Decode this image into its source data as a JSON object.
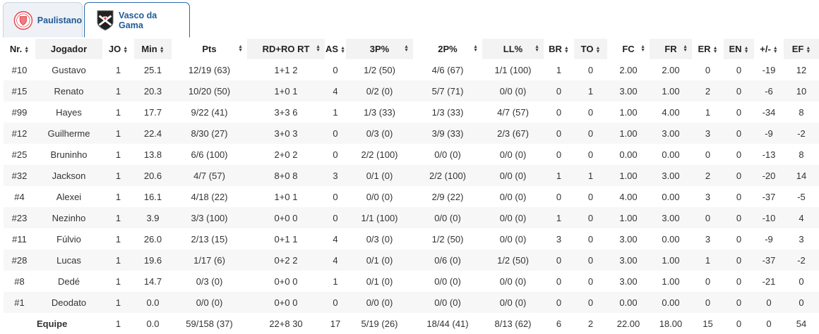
{
  "tabs": [
    {
      "label": "Paulistano",
      "active": false,
      "icon": "paulistano-crest-icon",
      "color": "#e0404a"
    },
    {
      "label": "Vasco da Gama",
      "active": true,
      "icon": "vasco-crest-icon",
      "color": "#222222"
    }
  ],
  "colors": {
    "tab_text": "#1f5a97",
    "active_tab_border": "#2b67a8",
    "row_alt": "#f7f7f7"
  },
  "table": {
    "headers": [
      "Nr.",
      "Jogador",
      "JO",
      "Min",
      "Pts",
      "RD+RO RT",
      "AS",
      "3P%",
      "2P%",
      "LL%",
      "BR",
      "TO",
      "FC",
      "FR",
      "ER",
      "EN",
      "+/-",
      "EF"
    ],
    "sort_icon": "sort-updown-icon",
    "rows": [
      [
        "#10",
        "Gustavo",
        "1",
        "25.1",
        "12/19 (63)",
        "1+1 2",
        "0",
        "1/2 (50)",
        "4/6 (67)",
        "1/1 (100)",
        "1",
        "0",
        "2.00",
        "2.00",
        "0",
        "0",
        "-19",
        "12"
      ],
      [
        "#15",
        "Renato",
        "1",
        "20.3",
        "10/20 (50)",
        "1+0 1",
        "4",
        "0/2 (0)",
        "5/7 (71)",
        "0/0 (0)",
        "0",
        "1",
        "3.00",
        "1.00",
        "2",
        "0",
        "-6",
        "10"
      ],
      [
        "#99",
        "Hayes",
        "1",
        "17.7",
        "9/22 (41)",
        "3+3 6",
        "1",
        "1/3 (33)",
        "1/3 (33)",
        "4/7 (57)",
        "0",
        "0",
        "1.00",
        "4.00",
        "1",
        "0",
        "-34",
        "8"
      ],
      [
        "#12",
        "Guilherme",
        "1",
        "22.4",
        "8/30 (27)",
        "3+0 3",
        "0",
        "0/3 (0)",
        "3/9 (33)",
        "2/3 (67)",
        "0",
        "0",
        "1.00",
        "3.00",
        "3",
        "0",
        "-9",
        "-2"
      ],
      [
        "#25",
        "Bruninho",
        "1",
        "13.8",
        "6/6 (100)",
        "2+0 2",
        "0",
        "2/2 (100)",
        "0/0 (0)",
        "0/0 (0)",
        "0",
        "0",
        "0.00",
        "0.00",
        "0",
        "0",
        "-13",
        "8"
      ],
      [
        "#32",
        "Jackson",
        "1",
        "20.6",
        "4/7 (57)",
        "8+0 8",
        "3",
        "0/1 (0)",
        "2/2 (100)",
        "0/0 (0)",
        "1",
        "1",
        "1.00",
        "3.00",
        "2",
        "0",
        "-20",
        "14"
      ],
      [
        "#4",
        "Alexei",
        "1",
        "16.1",
        "4/18 (22)",
        "1+0 1",
        "0",
        "0/0 (0)",
        "2/9 (22)",
        "0/0 (0)",
        "0",
        "0",
        "4.00",
        "0.00",
        "3",
        "0",
        "-37",
        "-5"
      ],
      [
        "#23",
        "Nezinho",
        "1",
        "3.9",
        "3/3 (100)",
        "0+0 0",
        "0",
        "1/1 (100)",
        "0/0 (0)",
        "0/0 (0)",
        "1",
        "0",
        "1.00",
        "3.00",
        "0",
        "0",
        "-10",
        "4"
      ],
      [
        "#11",
        "Fúlvio",
        "1",
        "26.0",
        "2/13 (15)",
        "0+1 1",
        "4",
        "0/3 (0)",
        "1/2 (50)",
        "0/0 (0)",
        "3",
        "0",
        "3.00",
        "0.00",
        "3",
        "0",
        "-9",
        "3"
      ],
      [
        "#28",
        "Lucas",
        "1",
        "19.6",
        "1/17 (6)",
        "0+2 2",
        "4",
        "0/1 (0)",
        "0/6 (0)",
        "1/2 (50)",
        "0",
        "0",
        "3.00",
        "1.00",
        "1",
        "0",
        "-37",
        "-2"
      ],
      [
        "#8",
        "Dedé",
        "1",
        "14.7",
        "0/3 (0)",
        "0+0 0",
        "1",
        "0/1 (0)",
        "0/0 (0)",
        "0/0 (0)",
        "0",
        "0",
        "3.00",
        "1.00",
        "0",
        "0",
        "-21",
        "0"
      ],
      [
        "#1",
        "Deodato",
        "1",
        "0.0",
        "0/0 (0)",
        "0+0 0",
        "0",
        "0/0 (0)",
        "0/0 (0)",
        "0/0 (0)",
        "0",
        "0",
        "0.00",
        "0.00",
        "0",
        "0",
        "0",
        "0"
      ]
    ],
    "total": [
      "",
      "Equipe",
      "1",
      "0.0",
      "59/158 (37)",
      "22+8 30",
      "17",
      "5/19 (26)",
      "18/44 (41)",
      "8/13 (62)",
      "6",
      "2",
      "22.00",
      "18.00",
      "15",
      "0",
      "0",
      "54"
    ]
  }
}
